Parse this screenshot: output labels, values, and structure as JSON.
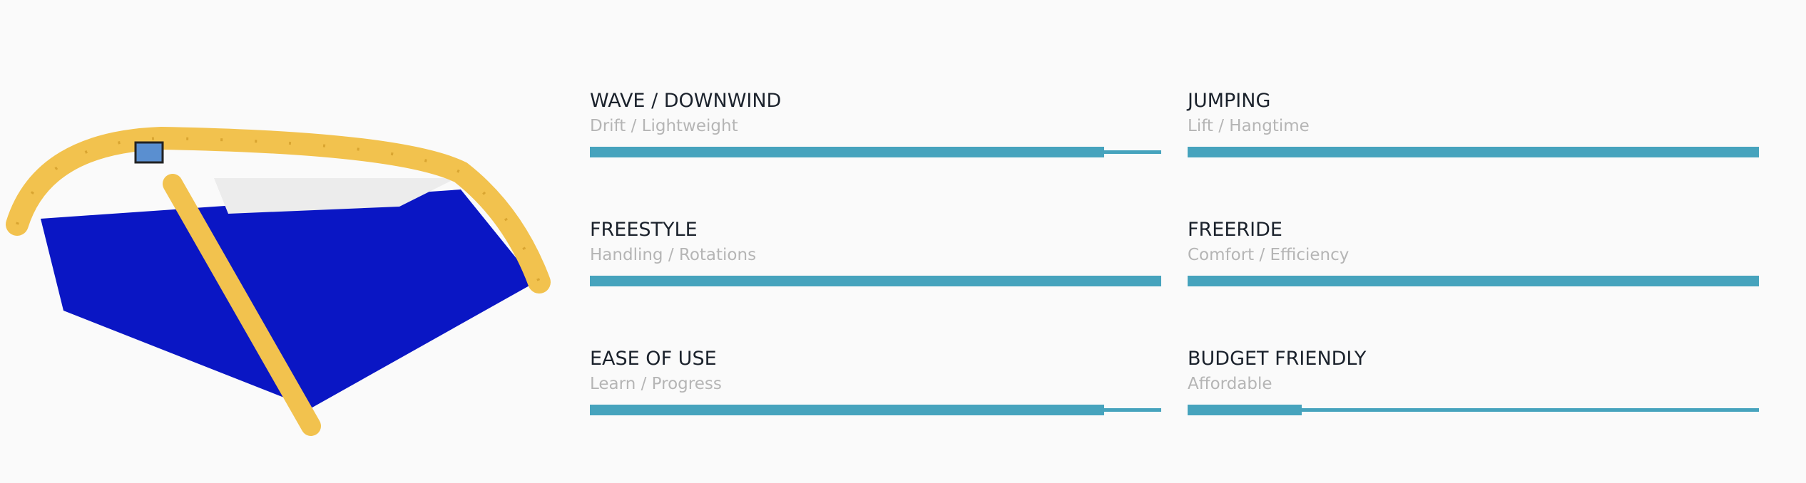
{
  "ratings": [
    {
      "title": "WAVE / DOWNWIND",
      "subtitle": "Drift / Lightweight",
      "value": 90
    },
    {
      "title": "JUMPING",
      "subtitle": "Lift / Hangtime",
      "value": 100
    },
    {
      "title": "FREESTYLE",
      "subtitle": "Handling / Rotations",
      "value": 100
    },
    {
      "title": "FREERIDE",
      "subtitle": "Comfort / Efficiency",
      "value": 100
    },
    {
      "title": "EASE OF USE",
      "subtitle": "Learn / Progress",
      "value": 90
    },
    {
      "title": "BUDGET FRIENDLY",
      "subtitle": "Affordable",
      "value": 20
    }
  ]
}
